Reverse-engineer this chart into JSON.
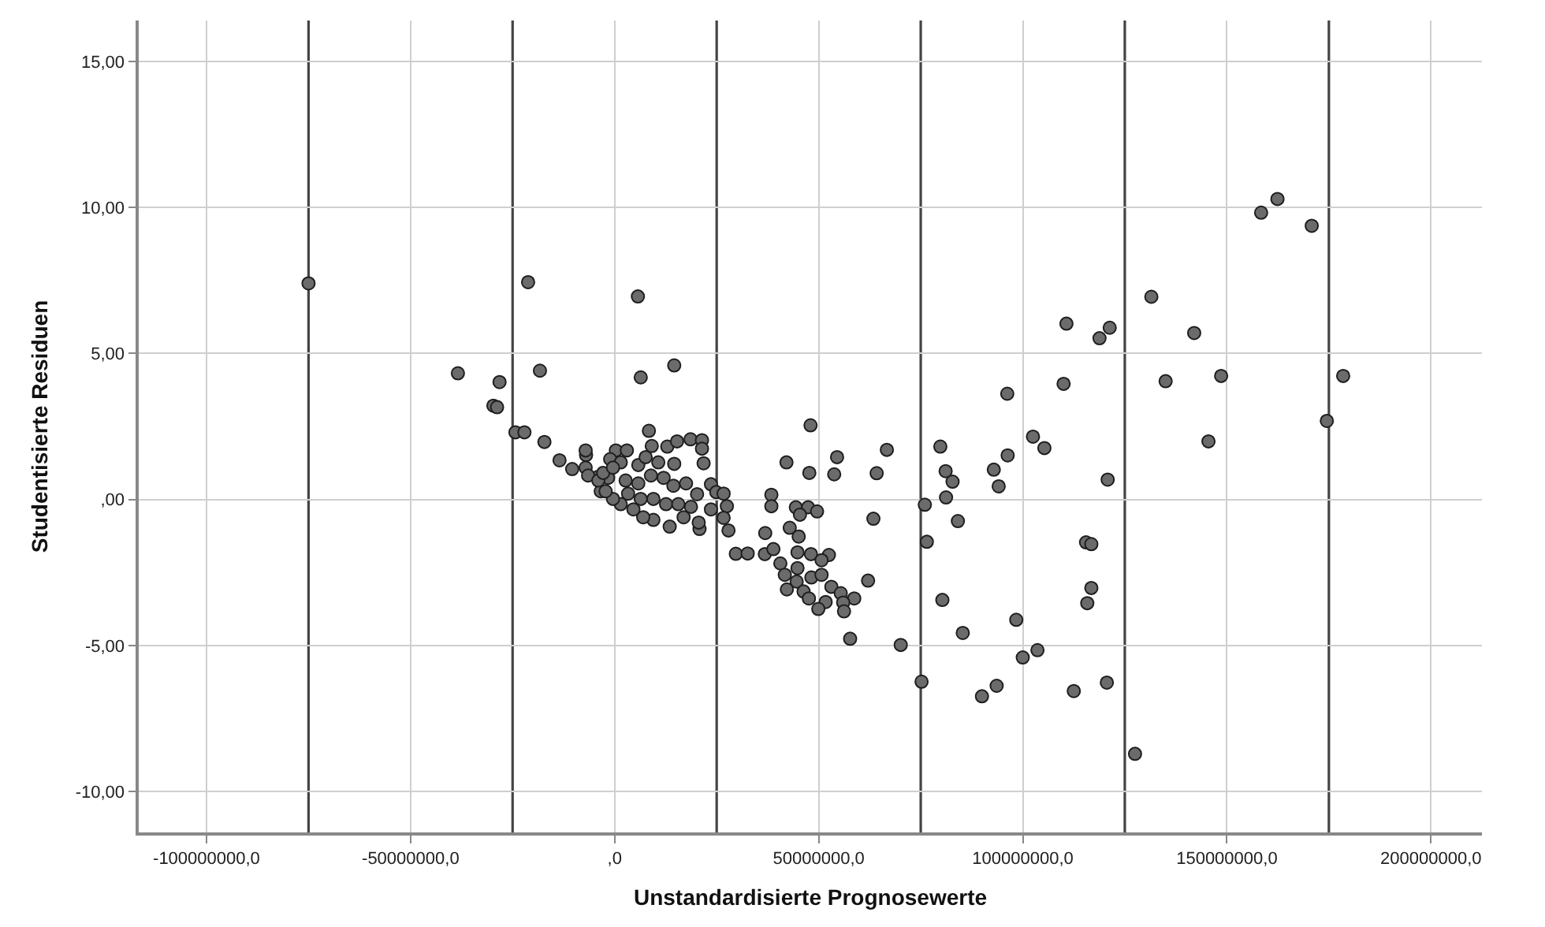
{
  "chart_data": {
    "type": "scatter",
    "xlabel": "Unstandardisierte Prognosewerte",
    "ylabel": "Studentisierte Residuen",
    "color": "#6b6b6b",
    "marker": "circle",
    "grid": true,
    "xlim": [
      -116600000,
      212500000
    ],
    "ylim": [
      -11.4,
      16.4
    ],
    "xticks": [
      {
        "value": -100000000,
        "label": "-100000000,0"
      },
      {
        "value": -50000000,
        "label": "-50000000,0"
      },
      {
        "value": 0,
        "label": ",0"
      },
      {
        "value": 50000000,
        "label": "50000000,0"
      },
      {
        "value": 100000000,
        "label": "100000000,0"
      },
      {
        "value": 150000000,
        "label": "150000000,0"
      },
      {
        "value": 200000000,
        "label": "200000000,0"
      }
    ],
    "yticks": [
      {
        "value": -10,
        "label": "-10,00"
      },
      {
        "value": -5,
        "label": "-5,00"
      },
      {
        "value": 0,
        "label": ",00"
      },
      {
        "value": 5,
        "label": "5,00"
      },
      {
        "value": 10,
        "label": "10,00"
      },
      {
        "value": 15,
        "label": "15,00"
      }
    ],
    "ref_lines": [
      {
        "axis": "x",
        "value": -75000000,
        "color": "#444444"
      },
      {
        "axis": "x",
        "value": -25000000,
        "color": "#444444"
      },
      {
        "axis": "x",
        "value": 25000000,
        "color": "#444444"
      },
      {
        "axis": "x",
        "value": 75000000,
        "color": "#444444"
      },
      {
        "axis": "x",
        "value": 125000000,
        "color": "#444444"
      },
      {
        "axis": "x",
        "value": 175000000,
        "color": "#444444"
      }
    ],
    "x": [
      -75000000,
      -21200000,
      -38400000,
      -28200000,
      -18300000,
      -29700000,
      -28800000,
      -24300000,
      -22100000,
      -17200000,
      -13500000,
      -7000000,
      -10400000,
      5700000,
      14600000,
      6400000,
      48000000,
      8400000,
      9100000,
      42100000,
      54500000,
      66700000,
      47700000,
      53800000,
      64200000,
      38400000,
      38400000,
      44400000,
      47400000,
      49600000,
      45400000,
      63400000,
      36900000,
      42900000,
      45100000,
      29700000,
      32600000,
      36800000,
      38900000,
      40600000,
      44800000,
      48100000,
      52500000,
      50700000,
      41700000,
      44800000,
      48200000,
      50700000,
      44600000,
      53100000,
      42200000,
      46300000,
      47600000,
      55400000,
      58700000,
      62100000,
      51700000,
      56000000,
      49900000,
      56200000,
      57700000,
      70100000,
      76000000,
      76500000,
      79800000,
      81100000,
      82800000,
      81200000,
      84100000,
      80300000,
      85300000,
      96200000,
      92900000,
      96300000,
      94100000,
      98400000,
      100000000,
      158400000,
      162400000,
      170800000,
      131500000,
      110700000,
      121300000,
      118800000,
      142000000,
      110000000,
      135000000,
      148600000,
      178500000,
      174500000,
      145500000,
      102500000,
      105300000,
      120800000,
      115500000,
      116800000,
      116800000,
      115800000,
      103600000,
      93600000,
      90000000,
      112500000,
      120600000,
      127500000,
      75200000,
      -7100000,
      -7100000,
      -4100000,
      300000,
      3000000,
      -1100000,
      12900000,
      15300000,
      18600000,
      21400000,
      21400000,
      21800000,
      14600000,
      10700000,
      23600000,
      20200000,
      24900000,
      26700000,
      27500000,
      26700000,
      27900000,
      23600000,
      20800000,
      20600000,
      16900000,
      13500000,
      9500000,
      7000000,
      4600000,
      1500000,
      -400000,
      -3400000,
      2700000,
      5800000,
      8900000,
      12000000,
      14400000,
      17500000,
      9500000,
      12600000,
      15600000,
      18700000,
      6400000,
      3300000,
      1500000,
      5800000,
      7600000,
      -1600000,
      -6500000,
      -4000000,
      -2200000,
      -2800000,
      -400000
    ],
    "values": [
      7.4,
      7.44,
      4.32,
      4.02,
      4.41,
      3.21,
      3.16,
      2.3,
      2.3,
      1.97,
      1.34,
      1.52,
      1.04,
      6.95,
      4.59,
      4.18,
      2.54,
      2.35,
      1.83,
      1.27,
      1.45,
      1.7,
      0.91,
      0.86,
      0.9,
      0.16,
      -0.23,
      -0.27,
      -0.27,
      -0.41,
      -0.52,
      -0.66,
      -1.15,
      -0.97,
      -1.27,
      -1.86,
      -1.85,
      -1.87,
      -1.7,
      -2.19,
      -1.81,
      -1.87,
      -1.9,
      -2.08,
      -2.58,
      -2.35,
      -2.67,
      -2.58,
      -2.81,
      -2.99,
      -3.08,
      -3.15,
      -3.39,
      -3.21,
      -3.39,
      -2.78,
      -3.51,
      -3.53,
      -3.75,
      -3.83,
      -4.77,
      -4.98,
      -0.18,
      -1.45,
      1.81,
      0.97,
      0.61,
      0.07,
      -0.74,
      -3.44,
      -4.57,
      3.62,
      1.02,
      1.51,
      0.45,
      -4.12,
      -5.41,
      9.82,
      10.29,
      9.37,
      6.94,
      6.02,
      5.88,
      5.52,
      5.7,
      3.96,
      4.05,
      4.23,
      4.23,
      2.69,
      1.99,
      2.15,
      1.76,
      0.68,
      -1.47,
      -1.53,
      -3.03,
      -3.55,
      -5.16,
      -6.38,
      -6.74,
      -6.56,
      -6.27,
      -8.71,
      -6.24,
      1.68,
      1.09,
      0.77,
      1.68,
      1.68,
      1.38,
      1.81,
      1.99,
      2.06,
      2.03,
      1.74,
      1.24,
      1.22,
      1.27,
      0.52,
      0.18,
      0.25,
      0.2,
      -0.23,
      -0.63,
      -1.06,
      -0.34,
      -1.01,
      -0.79,
      -0.61,
      -0.93,
      -0.7,
      -0.61,
      -0.34,
      -0.16,
      0.02,
      0.28,
      0.65,
      0.55,
      0.82,
      0.74,
      0.47,
      0.55,
      0.02,
      -0.16,
      -0.16,
      -0.25,
      0.02,
      0.2,
      1.27,
      1.18,
      1.45,
      0.74,
      0.82,
      0.65,
      0.28,
      0.91,
      1.09
    ]
  }
}
